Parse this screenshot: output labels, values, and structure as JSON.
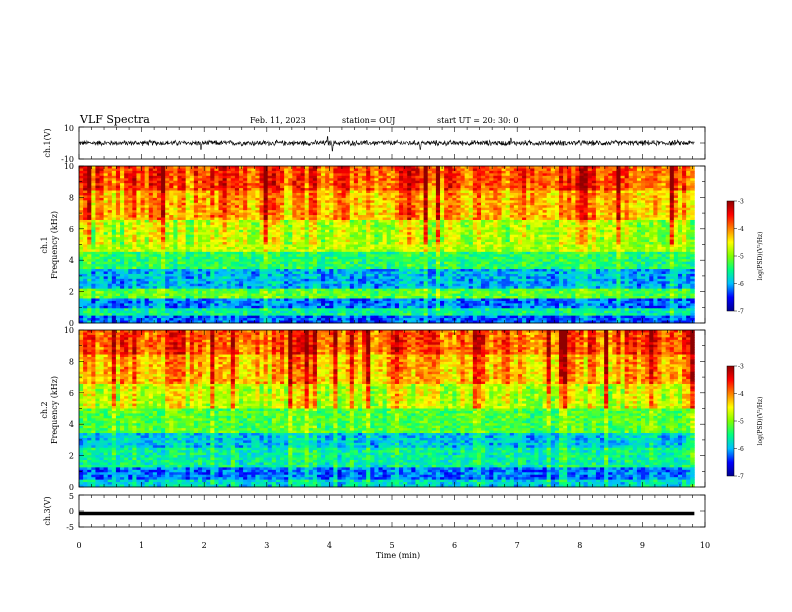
{
  "header": {
    "title": "VLF Spectra",
    "date": "Feb. 11, 2023",
    "station": "station= OUJ",
    "start": "start  UT  =   20: 30: 0"
  },
  "chart_data": [
    {
      "type": "line",
      "panel": "ch1-waveform",
      "ylabel": "ch.1(V)",
      "ylim": [
        -10,
        10
      ],
      "y_ticks": [
        "10",
        "-10"
      ],
      "baseline": 0,
      "noise_amplitude": 2,
      "spikes": [
        {
          "x": 1.95,
          "y": -4
        },
        {
          "x": 3.97,
          "y": 4
        },
        {
          "x": 4.05,
          "y": -5
        },
        {
          "x": 5.45,
          "y": -4
        },
        {
          "x": 6.9,
          "y": 3
        }
      ],
      "xlim": [
        0,
        10
      ]
    },
    {
      "type": "heatmap",
      "panel": "ch1-spectrogram",
      "ylabel": "ch.1\nFrequency (kHz)",
      "ylabel_lines": [
        "ch.1",
        "Frequency (kHz)"
      ],
      "ylim": [
        0,
        10
      ],
      "y_ticks": [
        "0",
        "2",
        "4",
        "6",
        "8",
        "10"
      ],
      "xlim": [
        0,
        9.83
      ],
      "colorbar": {
        "label": "log(PSD)(V²/Hz)",
        "range": [
          -7,
          -3
        ],
        "ticks": [
          "-3",
          "-4",
          "-5",
          "-6",
          "-7"
        ]
      },
      "bands": [
        {
          "f_min": 0.0,
          "f_max": 0.4,
          "level": -6.3
        },
        {
          "f_min": 0.4,
          "f_max": 0.9,
          "level": -5.6
        },
        {
          "f_min": 0.9,
          "f_max": 1.5,
          "level": -6.2
        },
        {
          "f_min": 1.5,
          "f_max": 2.2,
          "level": -5.2
        },
        {
          "f_min": 2.2,
          "f_max": 3.4,
          "level": -6.0
        },
        {
          "f_min": 3.4,
          "f_max": 4.5,
          "level": -5.4
        },
        {
          "f_min": 4.5,
          "f_max": 6.5,
          "level": -4.8
        },
        {
          "f_min": 6.5,
          "f_max": 8.5,
          "level": -4.2
        },
        {
          "f_min": 8.5,
          "f_max": 10.0,
          "level": -3.8
        }
      ]
    },
    {
      "type": "heatmap",
      "panel": "ch2-spectrogram",
      "ylabel": "ch.2\nFrequency (kHz)",
      "ylabel_lines": [
        "ch.2",
        "Frequency (kHz)"
      ],
      "ylim": [
        0,
        10
      ],
      "y_ticks": [
        "0",
        "2",
        "4",
        "6",
        "8",
        "10"
      ],
      "xlim": [
        0,
        9.83
      ],
      "colorbar": {
        "label": "log(PSD)(V²/Hz)",
        "range": [
          -7,
          -3
        ],
        "ticks": [
          "-3",
          "-4",
          "-5",
          "-6",
          "-7"
        ]
      },
      "bands": [
        {
          "f_min": 0.0,
          "f_max": 0.5,
          "level": -5.8
        },
        {
          "f_min": 0.5,
          "f_max": 1.3,
          "level": -6.2
        },
        {
          "f_min": 1.3,
          "f_max": 2.5,
          "level": -5.6
        },
        {
          "f_min": 2.5,
          "f_max": 3.5,
          "level": -5.9
        },
        {
          "f_min": 3.5,
          "f_max": 5.0,
          "level": -5.2
        },
        {
          "f_min": 5.0,
          "f_max": 6.5,
          "level": -4.7
        },
        {
          "f_min": 6.5,
          "f_max": 8.5,
          "level": -4.2
        },
        {
          "f_min": 8.5,
          "f_max": 10.0,
          "level": -3.8
        }
      ]
    },
    {
      "type": "line",
      "panel": "ch3-waveform",
      "ylabel": "ch.3(V)",
      "ylim": [
        -5,
        5
      ],
      "y_ticks": [
        "5",
        "0",
        "-5"
      ],
      "constant_value": -0.8,
      "xlim": [
        0,
        9.83
      ]
    }
  ],
  "x_axis": {
    "label": "Time (min)",
    "range": [
      0,
      10
    ],
    "ticks": [
      "0",
      "1",
      "2",
      "3",
      "4",
      "5",
      "6",
      "7",
      "8",
      "9",
      "10"
    ]
  },
  "colors": {
    "colormap": [
      "#00008f",
      "#0000ff",
      "#00bfff",
      "#00ff80",
      "#80ff00",
      "#ffff00",
      "#ff8000",
      "#ff0000",
      "#8f0000"
    ]
  }
}
